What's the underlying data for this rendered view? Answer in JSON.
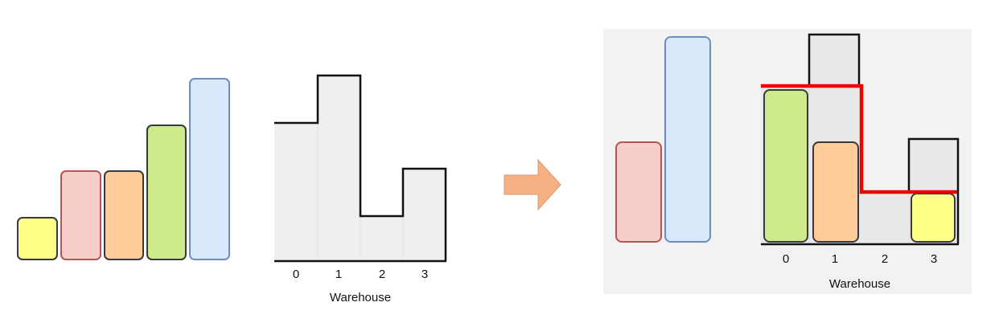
{
  "left_panel": {
    "boxes": [
      {
        "name": "yellow",
        "fill": "#ffff88",
        "stroke": "#36393d"
      },
      {
        "name": "red",
        "fill": "#f8cecc",
        "stroke": "#b85450"
      },
      {
        "name": "orange",
        "fill": "#ffcc99",
        "stroke": "#36393d"
      },
      {
        "name": "green",
        "fill": "#cdeb8b",
        "stroke": "#36393d"
      },
      {
        "name": "blue",
        "fill": "#dae8fc",
        "stroke": "#6c8ebf"
      }
    ],
    "warehouse": {
      "ticks": [
        "0",
        "1",
        "2",
        "3"
      ],
      "xlabel": "Warehouse"
    }
  },
  "arrow": {
    "fill": "#f5b183",
    "stroke": "#e0956b"
  },
  "right_panel": {
    "background": "#f2f2f2",
    "unplaced_boxes": [
      {
        "name": "red",
        "fill": "#f8cecc",
        "stroke": "#b85450"
      },
      {
        "name": "blue",
        "fill": "#dae8fc",
        "stroke": "#6c8ebf"
      }
    ],
    "placed_boxes": [
      {
        "name": "green",
        "room": "0",
        "fill": "#cdeb8b",
        "stroke": "#36393d"
      },
      {
        "name": "orange",
        "room": "1",
        "fill": "#ffcc99",
        "stroke": "#36393d"
      },
      {
        "name": "yellow",
        "room": "3",
        "fill": "#ffff88",
        "stroke": "#36393d"
      }
    ],
    "limit_line_color": "#ee0000",
    "warehouse": {
      "ticks": [
        "0",
        "1",
        "2",
        "3"
      ],
      "xlabel": "Warehouse"
    }
  }
}
